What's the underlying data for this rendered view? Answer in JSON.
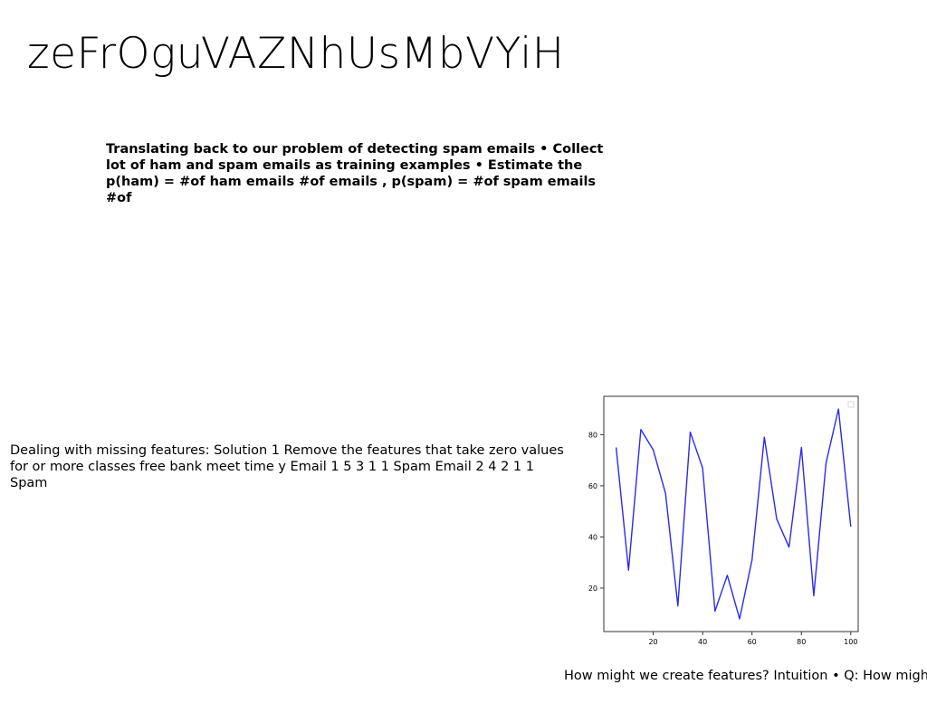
{
  "slide": {
    "title": "zeFrOguVAZNhUsMbVYiH",
    "bold_text": "Translating back to our problem of detecting spam emails • Collect lot of ham and spam emails as training examples • Estimate the p(ham) = #of ham emails #of emails , p(spam) = #of spam emails #of",
    "plain_text": "Dealing with missing features: Solution 1 Remove the features that take zero values for or more classes free bank meet time y Email 1 5 3 1 1 Spam Email 2 4 2 1 1 Spam",
    "caption": "How might we create features? Intuition • Q: How might"
  },
  "chart_data": {
    "type": "line",
    "title": "",
    "xlabel": "",
    "ylabel": "",
    "xlim": [
      0,
      103
    ],
    "ylim": [
      3,
      95
    ],
    "xticks": [
      20,
      40,
      60,
      80,
      100
    ],
    "yticks": [
      20,
      40,
      60,
      80
    ],
    "grid": false,
    "legend": "top-right",
    "series": [
      {
        "color": "#2a2af0",
        "x": [
          5,
          10,
          15,
          20,
          25,
          30,
          35,
          40,
          45,
          50,
          55,
          60,
          65,
          70,
          75,
          80,
          85,
          90,
          95,
          100
        ],
        "y": [
          75,
          27,
          82,
          74,
          57,
          13,
          81,
          67,
          11,
          25,
          8,
          31,
          79,
          47,
          36,
          75,
          17,
          69,
          90,
          44
        ]
      }
    ]
  }
}
